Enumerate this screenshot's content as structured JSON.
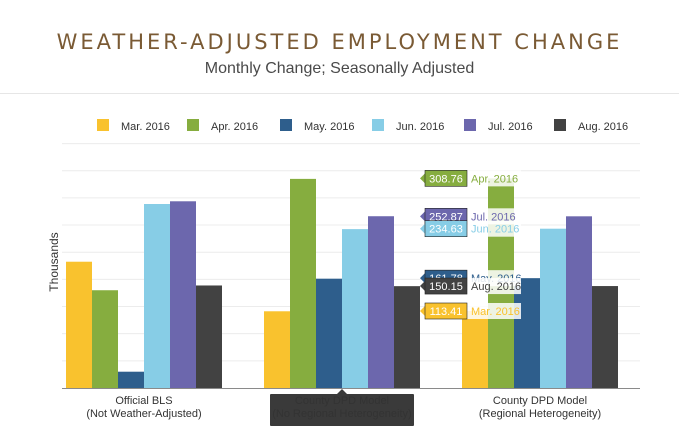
{
  "chart_data": {
    "type": "bar",
    "title": "WEATHER-ADJUSTED EMPLOYMENT CHANGE",
    "subtitle": "Monthly Change; Seasonally Adjusted",
    "ylabel": "Thousands",
    "categories": [
      [
        "Official BLS",
        "(Not Weather-Adjusted)"
      ],
      [
        "County DPD Model",
        "(No Regional Heterogeneity)"
      ],
      [
        "County DPD Model",
        "(Regional Heterogeneity)"
      ]
    ],
    "highlighted_category": 1,
    "ylim": [
      0,
      380
    ],
    "grid": true,
    "legend_position": "top",
    "series": [
      {
        "name": "Mar. 2016",
        "color": "#f9c22e",
        "values": [
          186,
          113,
          113.41
        ]
      },
      {
        "name": "Apr. 2016",
        "color": "#86ad3f",
        "values": [
          144,
          308,
          308.76
        ]
      },
      {
        "name": "May. 2016",
        "color": "#2e5e8c",
        "values": [
          24,
          161,
          161.78
        ]
      },
      {
        "name": "Jun. 2016",
        "color": "#87cde6",
        "values": [
          271,
          234,
          234.63
        ]
      },
      {
        "name": "Jul. 2016",
        "color": "#6c67ad",
        "values": [
          275,
          253,
          252.87
        ]
      },
      {
        "name": "Aug. 2016",
        "color": "#424242",
        "values": [
          151,
          150,
          150.15
        ]
      }
    ],
    "annotations": [
      {
        "value": "308.76",
        "label": "Apr. 2016",
        "series": 1
      },
      {
        "value": "252.87",
        "label": "Jul. 2016",
        "series": 4
      },
      {
        "value": "234.63",
        "label": "Jun. 2016",
        "series": 3
      },
      {
        "value": "161.78",
        "label": "May. 2016",
        "series": 2
      },
      {
        "value": "150.15",
        "label": "Aug. 2016",
        "series": 5
      },
      {
        "value": "113.41",
        "label": "Mar. 2016",
        "series": 0
      }
    ]
  }
}
